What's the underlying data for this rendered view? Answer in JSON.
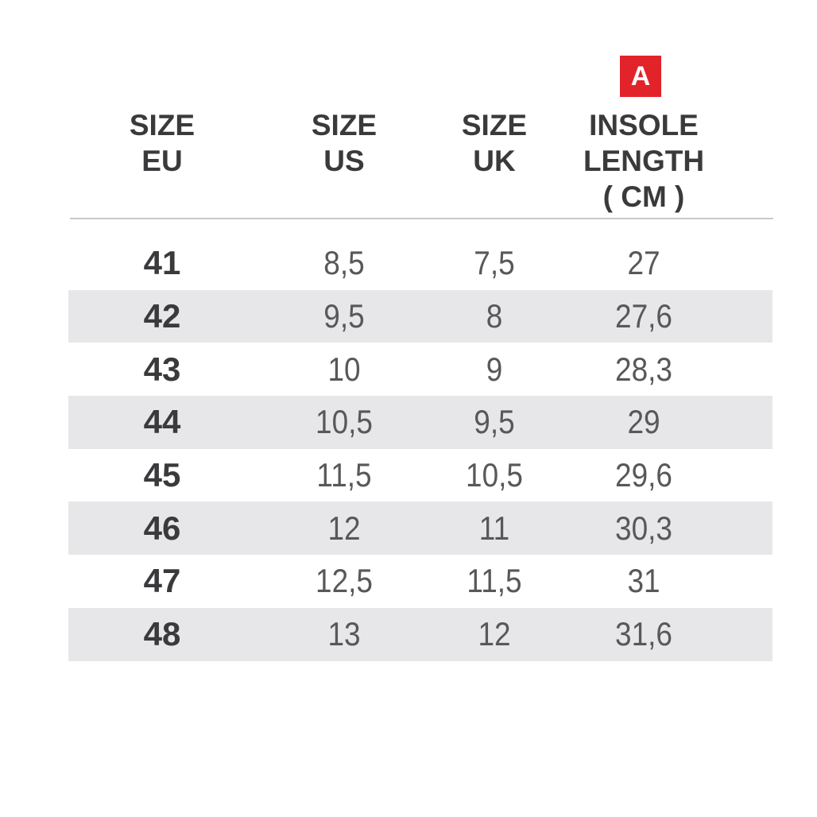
{
  "badge": {
    "label": "A",
    "color": "#e2232a"
  },
  "table": {
    "headers": [
      {
        "lines": [
          "SIZE",
          "EU"
        ]
      },
      {
        "lines": [
          "SIZE",
          "US"
        ]
      },
      {
        "lines": [
          "SIZE",
          "UK"
        ]
      },
      {
        "lines": [
          "INSOLE",
          "LENGTH",
          "( CM )"
        ]
      }
    ],
    "rows": [
      {
        "eu": "41",
        "us": "8,5",
        "uk": "7,5",
        "insole": "27"
      },
      {
        "eu": "42",
        "us": "9,5",
        "uk": "8",
        "insole": "27,6"
      },
      {
        "eu": "43",
        "us": "10",
        "uk": "9",
        "insole": "28,3"
      },
      {
        "eu": "44",
        "us": "10,5",
        "uk": "9,5",
        "insole": "29"
      },
      {
        "eu": "45",
        "us": "11,5",
        "uk": "10,5",
        "insole": "29,6"
      },
      {
        "eu": "46",
        "us": "12",
        "uk": "11",
        "insole": "30,3"
      },
      {
        "eu": "47",
        "us": "12,5",
        "uk": "11,5",
        "insole": "31"
      },
      {
        "eu": "48",
        "us": "13",
        "uk": "12",
        "insole": "31,6"
      }
    ]
  },
  "chart_data": {
    "type": "table",
    "title": "Shoe size conversion table with insole length (marked A)",
    "columns": [
      "SIZE EU",
      "SIZE US",
      "SIZE UK",
      "INSOLE LENGTH ( CM )"
    ],
    "rows": [
      [
        "41",
        "8,5",
        "7,5",
        "27"
      ],
      [
        "42",
        "9,5",
        "8",
        "27,6"
      ],
      [
        "43",
        "10",
        "9",
        "28,3"
      ],
      [
        "44",
        "10,5",
        "9,5",
        "29"
      ],
      [
        "45",
        "11,5",
        "10,5",
        "29,6"
      ],
      [
        "46",
        "12",
        "11",
        "30,3"
      ],
      [
        "47",
        "12,5",
        "11,5",
        "31"
      ],
      [
        "48",
        "13",
        "12",
        "31,6"
      ]
    ],
    "layout_hints": {
      "striped_rows": "even rows (42, 44, 46, 48) have light gray background",
      "eu_column_bold": true,
      "badge_above_column": "INSOLE LENGTH ( CM )"
    }
  },
  "colors": {
    "accent_red": "#e2232a",
    "stripe": "#e7e7e9",
    "header_text": "#3a3a3c",
    "data_text": "#58585a",
    "divider": "#c8c8ca",
    "background": "#ffffff"
  }
}
